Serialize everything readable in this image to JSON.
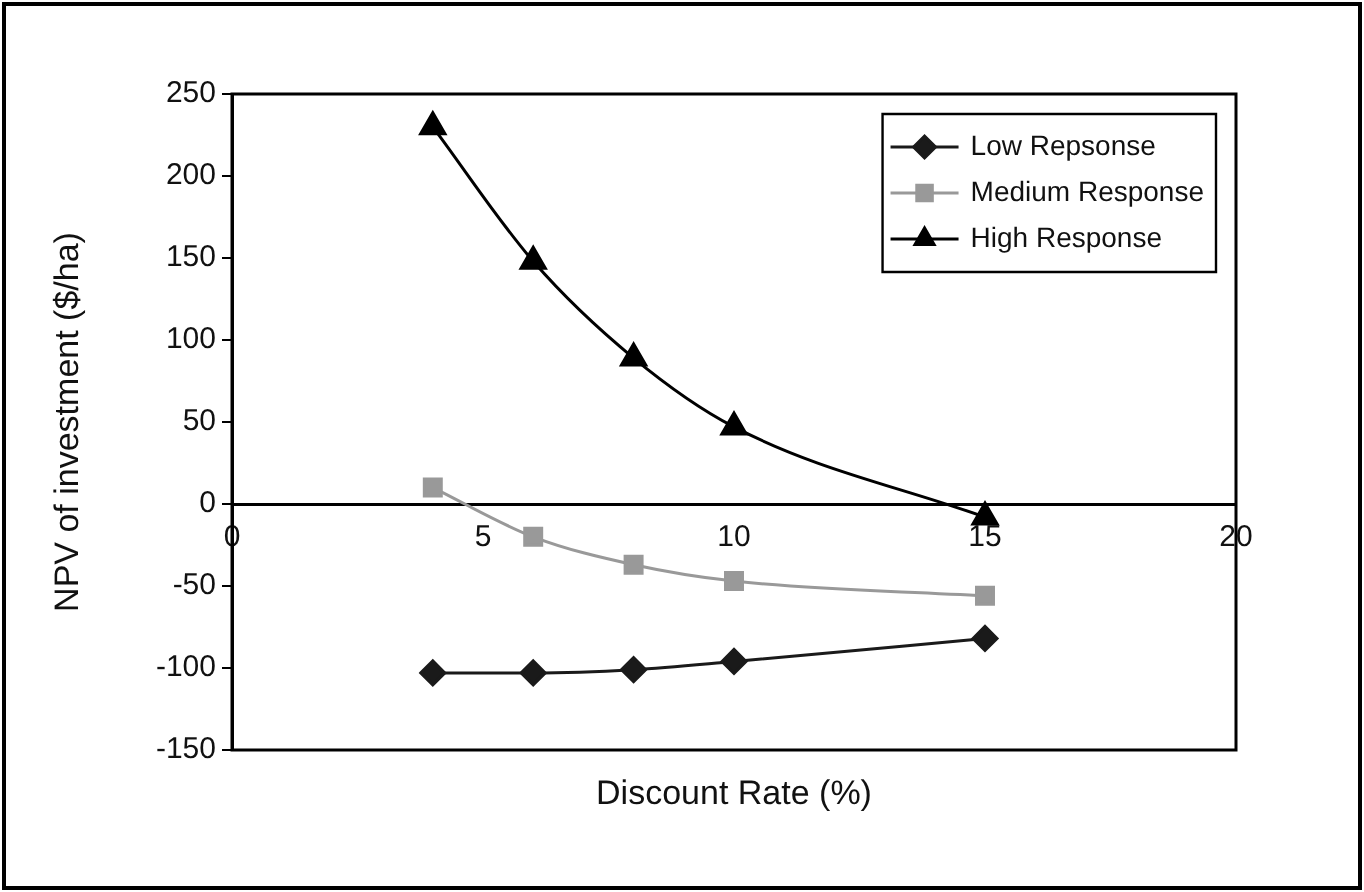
{
  "chart_data": {
    "type": "line",
    "xlabel": "Discount Rate (%)",
    "ylabel": "NPV of investment ($/ha)",
    "x": [
      4,
      6,
      8,
      10,
      15
    ],
    "series": [
      {
        "name": "Low Repsonse",
        "color": "#1a1a1a",
        "marker": "diamond",
        "values": [
          -103,
          -103,
          -101,
          -96,
          -82
        ]
      },
      {
        "name": "Medium Response",
        "color": "#999999",
        "marker": "square",
        "values": [
          10,
          -20,
          -37,
          -47,
          -56
        ]
      },
      {
        "name": "High Response",
        "color": "#000000",
        "marker": "triangle",
        "values": [
          230,
          148,
          89,
          47,
          -8
        ]
      }
    ],
    "xlim": [
      0,
      20
    ],
    "xticks": [
      0,
      5,
      10,
      15,
      20
    ],
    "ylim": [
      -150,
      250
    ],
    "yticks": [
      -150,
      -100,
      -50,
      0,
      50,
      100,
      150,
      200,
      250
    ],
    "grid": false,
    "legend": "top right",
    "line_style": "solid"
  }
}
